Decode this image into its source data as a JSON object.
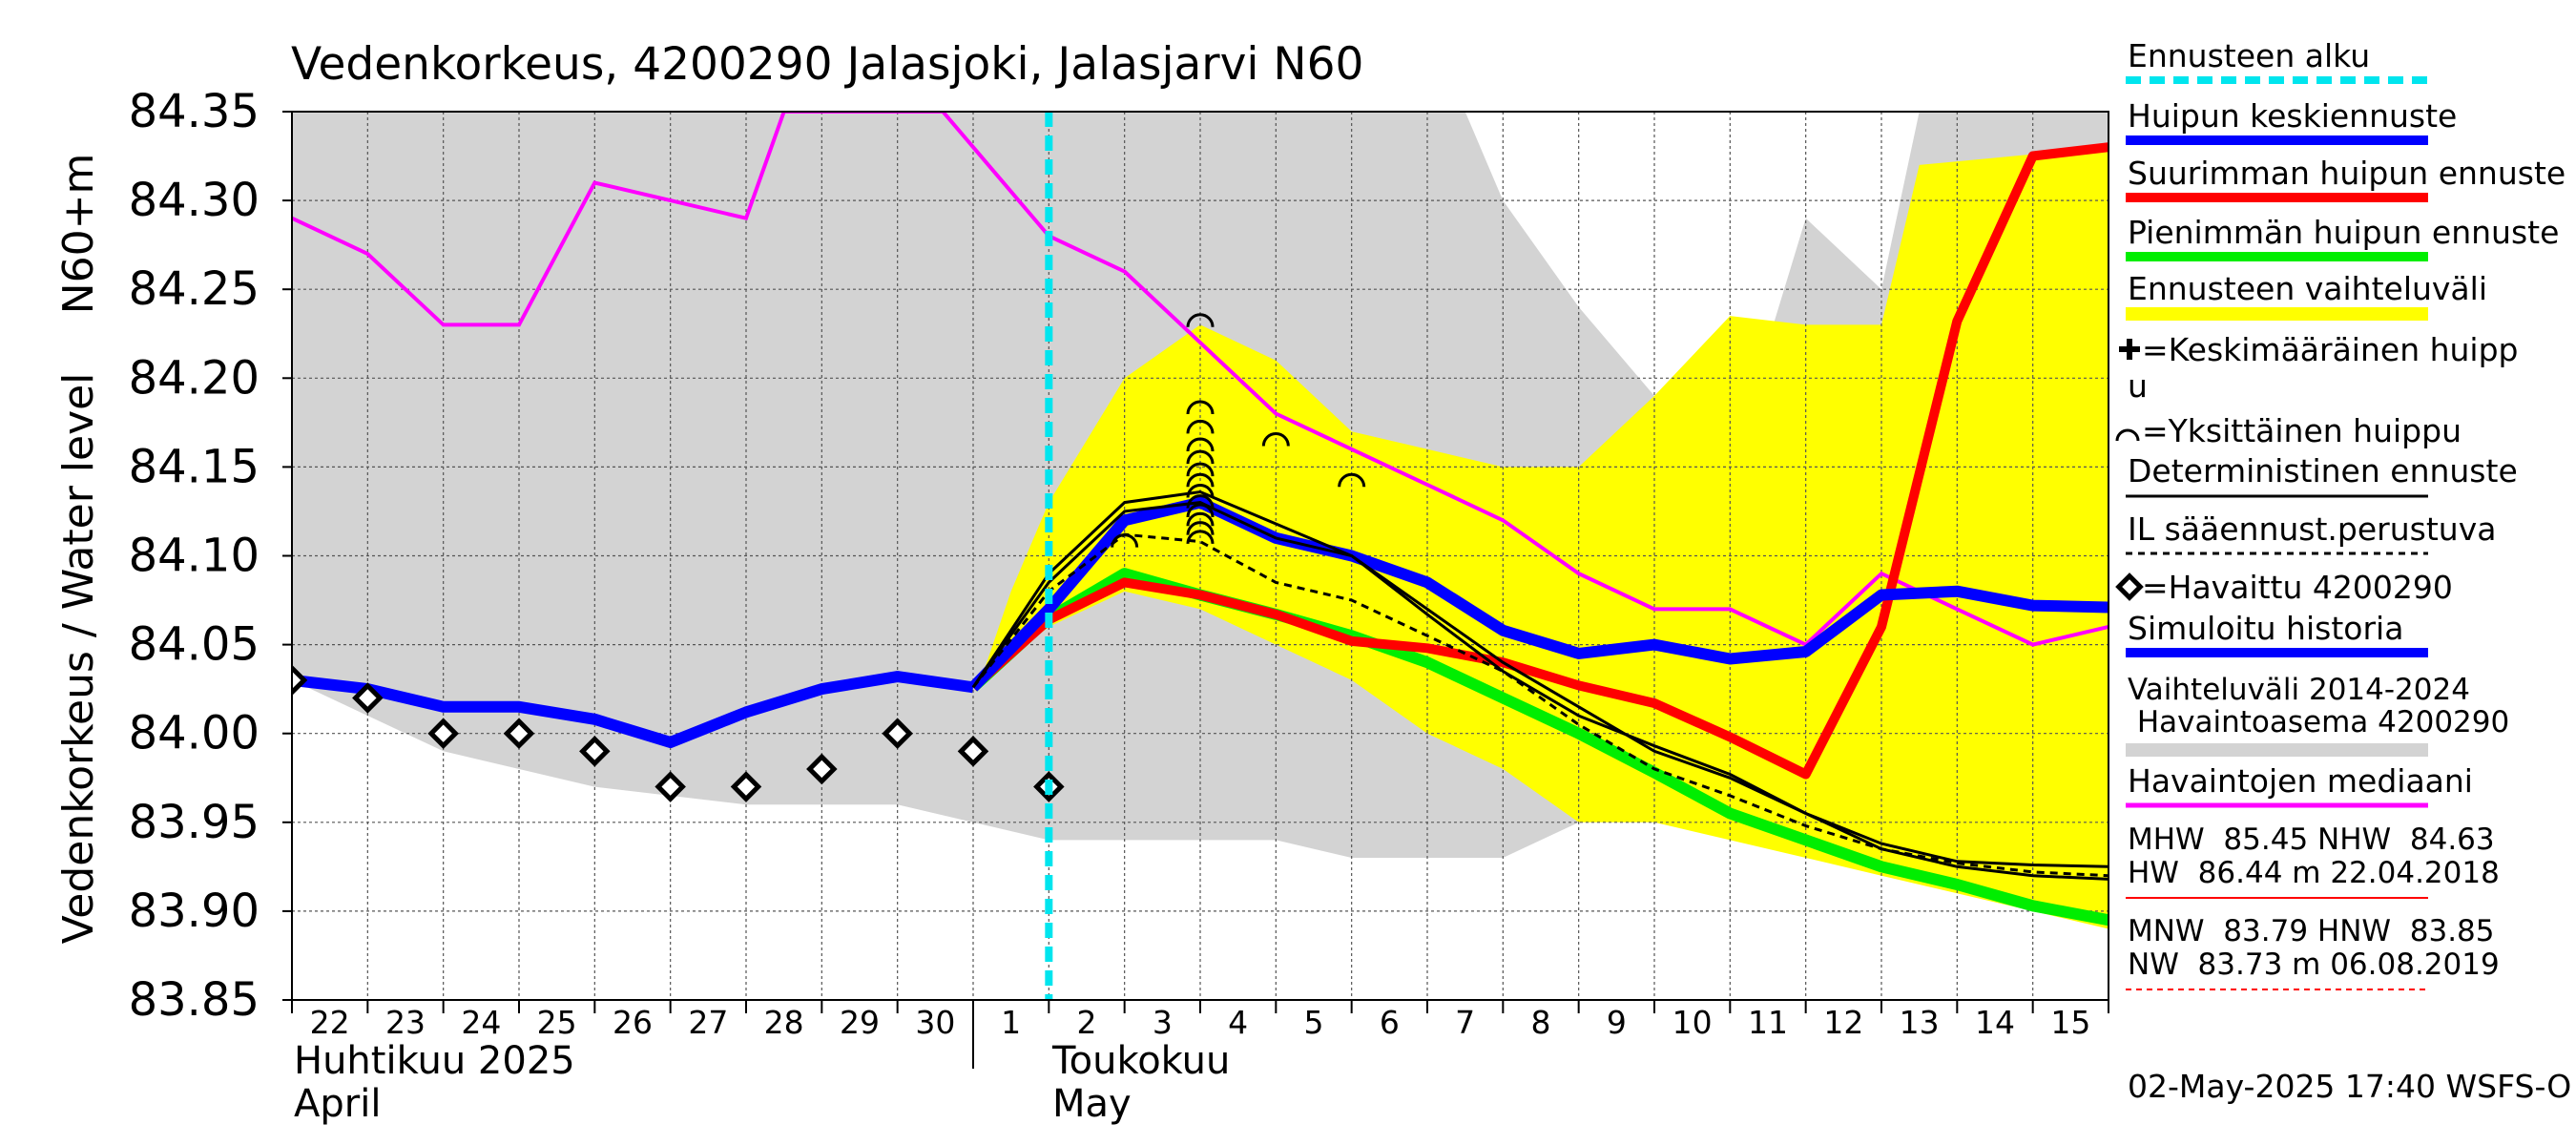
{
  "chart_data": {
    "type": "line",
    "title": "Vedenkorkeus, 4200290 Jalasjoki, Jalasjarvi N60",
    "ylabel_outer": "Vedenkorkeus / Water level",
    "ylabel_inner": "N60+m",
    "ylim": [
      83.85,
      84.35
    ],
    "y_ticks": [
      "84.35",
      "84.30",
      "84.25",
      "84.20",
      "84.15",
      "84.10",
      "84.05",
      "84.00",
      "83.95",
      "83.90",
      "83.85"
    ],
    "x_start_day": 22,
    "x_days": 25,
    "x_tick_labels": [
      "22",
      "23",
      "24",
      "25",
      "26",
      "27",
      "28",
      "29",
      "30",
      "1",
      "2",
      "3",
      "4",
      "5",
      "6",
      "7",
      "8",
      "9",
      "10",
      "11",
      "12",
      "13",
      "14",
      "15"
    ],
    "month_labels": {
      "april_fi": "Huhtikuu  2025",
      "april_en": "April",
      "may_fi": "Toukokuu",
      "may_en": "May"
    },
    "forecast_start": 10.0,
    "grid": true,
    "legend_placement": "right",
    "variation_2014_2024": {
      "upper": [
        [
          0,
          84.35
        ],
        [
          15.5,
          84.35
        ],
        [
          16,
          84.3
        ],
        [
          17,
          84.24
        ],
        [
          18,
          84.19
        ],
        [
          19,
          84.15
        ],
        [
          20,
          84.29
        ],
        [
          21,
          84.25
        ],
        [
          21.5,
          84.35
        ],
        [
          25,
          84.35
        ]
      ],
      "lower": [
        [
          0,
          84.03
        ],
        [
          2,
          83.99
        ],
        [
          4,
          83.97
        ],
        [
          6,
          83.96
        ],
        [
          8,
          83.96
        ],
        [
          9,
          83.95
        ],
        [
          10,
          83.94
        ],
        [
          11,
          83.94
        ],
        [
          13,
          83.94
        ],
        [
          14,
          83.93
        ],
        [
          16,
          83.93
        ],
        [
          17,
          83.95
        ],
        [
          18,
          83.99
        ],
        [
          19,
          84.0
        ],
        [
          20,
          84.0
        ],
        [
          22,
          83.99
        ],
        [
          23,
          83.99
        ],
        [
          24,
          83.97
        ],
        [
          25,
          83.96
        ]
      ]
    },
    "forecast_range": {
      "upper": [
        [
          9.1,
          84.03
        ],
        [
          9.5,
          84.08
        ],
        [
          10,
          84.13
        ],
        [
          11,
          84.2
        ],
        [
          12,
          84.23
        ],
        [
          13,
          84.21
        ],
        [
          14,
          84.17
        ],
        [
          15,
          84.16
        ],
        [
          16,
          84.15
        ],
        [
          17,
          84.15
        ],
        [
          18,
          84.19
        ],
        [
          19,
          84.235
        ],
        [
          20,
          84.23
        ],
        [
          21,
          84.23
        ],
        [
          21.5,
          84.32
        ],
        [
          24,
          84.33
        ]
      ],
      "lower": [
        [
          9.1,
          84.03
        ],
        [
          10,
          84.06
        ],
        [
          11,
          84.08
        ],
        [
          12,
          84.07
        ],
        [
          13,
          84.05
        ],
        [
          14,
          84.03
        ],
        [
          15,
          84.0
        ],
        [
          16,
          83.98
        ],
        [
          17,
          83.95
        ],
        [
          18,
          83.95
        ],
        [
          19,
          83.94
        ],
        [
          20,
          83.93
        ],
        [
          21,
          83.92
        ],
        [
          22,
          83.91
        ],
        [
          23,
          83.9
        ],
        [
          24,
          83.89
        ]
      ]
    },
    "series": [
      {
        "name": "Vaihteluväli 2014-2024",
        "color": "#d3d3d3",
        "role": "band"
      },
      {
        "name": "Havaintojen mediaani",
        "color": "#ff00ff",
        "points": [
          [
            0,
            84.29
          ],
          [
            1,
            84.27
          ],
          [
            2,
            84.23
          ],
          [
            3,
            84.23
          ],
          [
            4,
            84.31
          ],
          [
            5,
            84.3
          ],
          [
            6,
            84.29
          ],
          [
            6.5,
            84.35
          ],
          [
            8.6,
            84.35
          ],
          [
            9,
            84.33
          ],
          [
            10,
            84.28
          ],
          [
            11,
            84.26
          ],
          [
            12,
            84.22
          ],
          [
            13,
            84.18
          ],
          [
            14,
            84.16
          ],
          [
            15,
            84.14
          ],
          [
            16,
            84.12
          ],
          [
            17,
            84.09
          ],
          [
            18,
            84.07
          ],
          [
            19,
            84.07
          ],
          [
            20,
            84.05
          ],
          [
            21,
            84.09
          ],
          [
            22,
            84.07
          ],
          [
            23,
            84.05
          ],
          [
            24,
            84.06
          ]
        ]
      },
      {
        "name": "Simuloitu historia",
        "color": "#0000ff",
        "points": [
          [
            0,
            84.03
          ],
          [
            1,
            84.025
          ],
          [
            2,
            84.015
          ],
          [
            3,
            84.015
          ],
          [
            4,
            84.008
          ],
          [
            5,
            83.995
          ],
          [
            6,
            84.012
          ],
          [
            7,
            84.025
          ],
          [
            8,
            84.032
          ],
          [
            9,
            84.026
          ]
        ]
      },
      {
        "name": "Huipun keskiennuste",
        "color": "#0000ff",
        "points": [
          [
            9,
            84.026
          ],
          [
            10,
            84.07
          ],
          [
            11,
            84.12
          ],
          [
            12,
            84.13
          ],
          [
            13,
            84.11
          ],
          [
            14,
            84.1
          ],
          [
            15,
            84.085
          ],
          [
            16,
            84.058
          ],
          [
            17,
            84.045
          ],
          [
            18,
            84.05
          ],
          [
            19,
            84.042
          ],
          [
            20,
            84.046
          ],
          [
            21,
            84.078
          ],
          [
            22,
            84.08
          ],
          [
            23,
            84.072
          ],
          [
            24,
            84.071
          ]
        ]
      },
      {
        "name": "Pienimmän huipun ennuste",
        "color": "#00ee00",
        "points": [
          [
            9,
            84.026
          ],
          [
            10,
            84.065
          ],
          [
            11,
            84.09
          ],
          [
            12,
            84.078
          ],
          [
            13,
            84.067
          ],
          [
            14,
            84.055
          ],
          [
            15,
            84.04
          ],
          [
            16,
            84.02
          ],
          [
            17,
            84.0
          ],
          [
            18,
            83.978
          ],
          [
            19,
            83.955
          ],
          [
            20,
            83.94
          ],
          [
            21,
            83.925
          ],
          [
            22,
            83.915
          ],
          [
            23,
            83.903
          ],
          [
            24,
            83.895
          ]
        ]
      },
      {
        "name": "Suurimman huipun ennuste",
        "color": "#ff0000",
        "points": [
          [
            9,
            84.026
          ],
          [
            10,
            84.064
          ],
          [
            11,
            84.085
          ],
          [
            12,
            84.078
          ],
          [
            13,
            84.067
          ],
          [
            14,
            84.052
          ],
          [
            15,
            84.048
          ],
          [
            16,
            84.04
          ],
          [
            17,
            84.027
          ],
          [
            18,
            84.017
          ],
          [
            19,
            83.998
          ],
          [
            20,
            83.977
          ],
          [
            21,
            84.06
          ],
          [
            22,
            84.232
          ],
          [
            23,
            84.325
          ],
          [
            24,
            84.33
          ]
        ]
      },
      {
        "name": "Deterministinen ennuste",
        "color": "#000000",
        "points": [
          [
            9,
            84.026
          ],
          [
            10,
            84.09
          ],
          [
            11,
            84.13
          ],
          [
            12,
            84.136
          ],
          [
            13,
            84.118
          ],
          [
            14,
            84.1
          ],
          [
            15,
            84.067
          ],
          [
            16,
            84.035
          ],
          [
            17,
            84.01
          ],
          [
            18,
            83.993
          ],
          [
            19,
            83.977
          ],
          [
            20,
            83.955
          ],
          [
            21,
            83.938
          ],
          [
            22,
            83.928
          ],
          [
            23,
            83.926
          ],
          [
            24,
            83.925
          ]
        ]
      },
      {
        "name": "Deterministinen ennuste",
        "color": "#000000",
        "points": [
          [
            9,
            84.026
          ],
          [
            10,
            84.085
          ],
          [
            11,
            84.125
          ],
          [
            12,
            84.13
          ],
          [
            13,
            84.11
          ],
          [
            14,
            84.1
          ],
          [
            15,
            84.07
          ],
          [
            16,
            84.04
          ],
          [
            17,
            84.015
          ],
          [
            18,
            83.99
          ],
          [
            19,
            83.975
          ],
          [
            20,
            83.955
          ],
          [
            21,
            83.935
          ],
          [
            22,
            83.925
          ],
          [
            23,
            83.92
          ],
          [
            24,
            83.918
          ]
        ]
      },
      {
        "name": "IL sääennust.perustuva",
        "color": "#000000",
        "points": [
          [
            9,
            84.026
          ],
          [
            10,
            84.08
          ],
          [
            11,
            84.112
          ],
          [
            12,
            84.108
          ],
          [
            13,
            84.085
          ],
          [
            14,
            84.075
          ],
          [
            15,
            84.055
          ],
          [
            16,
            84.035
          ],
          [
            17,
            84.005
          ],
          [
            18,
            83.98
          ],
          [
            19,
            83.965
          ],
          [
            20,
            83.948
          ],
          [
            21,
            83.935
          ],
          [
            22,
            83.927
          ],
          [
            23,
            83.922
          ],
          [
            24,
            83.92
          ]
        ]
      },
      {
        "name": "Havaittu 4200290",
        "color": "#000000",
        "points": [
          [
            0,
            84.03
          ],
          [
            1,
            84.02
          ],
          [
            2,
            84.0
          ],
          [
            3,
            84.0
          ],
          [
            4,
            83.99
          ],
          [
            5,
            83.97
          ],
          [
            6,
            83.97
          ],
          [
            7,
            83.98
          ],
          [
            8,
            84.0
          ],
          [
            9,
            83.99
          ],
          [
            10,
            83.97
          ]
        ]
      }
    ],
    "individual_peaks": [
      [
        11,
        84.108
      ],
      [
        12,
        84.232
      ],
      [
        12,
        84.183
      ],
      [
        12,
        84.172
      ],
      [
        12,
        84.162
      ],
      [
        12,
        84.155
      ],
      [
        12,
        84.148
      ],
      [
        12,
        84.142
      ],
      [
        12,
        84.136
      ],
      [
        12,
        84.13
      ],
      [
        12,
        84.125
      ],
      [
        12,
        84.12
      ],
      [
        12,
        84.115
      ],
      [
        12,
        84.11
      ],
      [
        13,
        84.165
      ],
      [
        14,
        84.142
      ]
    ],
    "legend": {
      "forecast_start": "Ennusteen alku",
      "mean_peak": "Huipun keskiennuste",
      "max_peak": "Suurimman huipun ennuste",
      "min_peak": "Pienimmän huipun ennuste",
      "forecast_range": "Ennusteen vaihteluväli",
      "avg_peak_line1": "=Keskimääräinen huipp",
      "avg_peak_line2": "u",
      "single_peak": "=Yksittäinen huippu",
      "deterministic": "Deterministinen ennuste",
      "il_based": "IL sääennust.perustuva",
      "observed": "=Havaittu 4200290",
      "simulated": "Simuloitu historia",
      "variation_line1": "Vaihteluväli 2014-2024",
      "variation_line2": " Havaintoasema 4200290",
      "median": "Havaintojen mediaani",
      "stats1_line1": "MHW  85.45 NHW  84.63",
      "stats1_line2": "HW  86.44 m 22.04.2018",
      "stats2_line1": "MNW  83.79 HNW  83.85",
      "stats2_line2": "NW  83.73 m 06.08.2019"
    },
    "footer": "02-May-2025 17:40 WSFS-O",
    "colors": {
      "band_grey": "#d3d3d3",
      "forecast_yellow": "#ffff00",
      "forecast_start_cyan": "#00e5ee",
      "mean_blue": "#0000ff",
      "max_red": "#ff0000",
      "min_green": "#00ee00",
      "median_magenta": "#ff00ff"
    }
  }
}
